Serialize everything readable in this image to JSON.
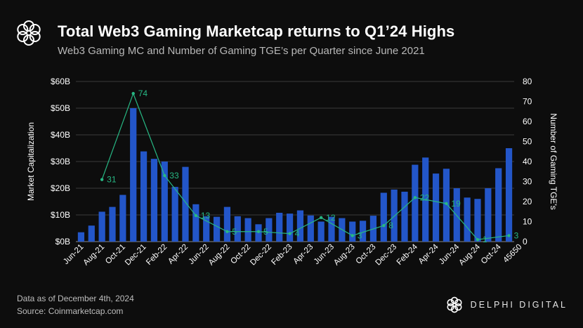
{
  "header": {
    "title": "Total Web3 Gaming Marketcap returns to Q1’24 Highs",
    "subtitle": "Web3 Gaming MC and Number of Gaming TGE’s per Quarter since June 2021"
  },
  "footer": {
    "note": "Data as of December 4th, 2024",
    "source": "Source: Coinmarketcap.com",
    "brand": "DELPHI DIGITAL"
  },
  "colors": {
    "background": "#0d0d0d",
    "bar": "#2356c9",
    "line": "#27b884",
    "grid": "#3a3a3a",
    "text": "#ffffff",
    "muted": "#bdbdbd"
  },
  "icons": {
    "header_logo": "delphi-logo-icon",
    "footer_logo": "delphi-logo-icon"
  },
  "chart_data": {
    "type": "bar",
    "grid": true,
    "ylabel": "Market Capitalization",
    "y2label": "Number of Gaming TGE's",
    "ylim": [
      0,
      60
    ],
    "y2lim": [
      0,
      80
    ],
    "y_ticks": [
      "$0B",
      "$10B",
      "$20B",
      "$30B",
      "$40B",
      "$50B",
      "$60B"
    ],
    "y2_ticks": [
      "0",
      "10",
      "20",
      "30",
      "40",
      "50",
      "60",
      "70",
      "80"
    ],
    "x_tick_labels": [
      "Jun-21",
      "Aug-21",
      "Oct-21",
      "Dec-21",
      "Feb-22",
      "Apr-22",
      "Jun-22",
      "Aug-22",
      "Oct-22",
      "Dec-22",
      "Feb-23",
      "Apr-23",
      "Jun-23",
      "Aug-23",
      "Oct-23",
      "Dec-23",
      "Feb-24",
      "Apr-24",
      "Jun-24",
      "Aug-24",
      "Oct-24",
      "45650"
    ],
    "series": [
      {
        "name": "Market Capitalization",
        "type": "bar",
        "axis": "left",
        "values": [
          3.5,
          6,
          11.2,
          13,
          17.5,
          50,
          33.8,
          31,
          30,
          20.5,
          28,
          14,
          9.5,
          9.3,
          13,
          9.5,
          8.8,
          6.5,
          8.8,
          10.8,
          10.5,
          11.7,
          9.8,
          7.5,
          9.3,
          8.8,
          7.5,
          7.8,
          9.7,
          18.3,
          19.5,
          18.7,
          28.8,
          31.5,
          25.5,
          27.3,
          20,
          16.5,
          16,
          20,
          27.5,
          35
        ]
      },
      {
        "name": "Number of Gaming TGE's",
        "type": "line",
        "axis": "right",
        "points": [
          {
            "index": 2,
            "value": 31
          },
          {
            "index": 5,
            "value": 74
          },
          {
            "index": 8,
            "value": 33
          },
          {
            "index": 11,
            "value": 13
          },
          {
            "index": 14,
            "value": 5
          },
          {
            "index": 17,
            "value": 5
          },
          {
            "index": 20,
            "value": 4
          },
          {
            "index": 23,
            "value": 12
          },
          {
            "index": 26,
            "value": 3
          },
          {
            "index": 29,
            "value": 8
          },
          {
            "index": 32,
            "value": 22
          },
          {
            "index": 35,
            "value": 19
          },
          {
            "index": 38,
            "value": 1
          },
          {
            "index": 41,
            "value": 3
          }
        ]
      }
    ]
  }
}
